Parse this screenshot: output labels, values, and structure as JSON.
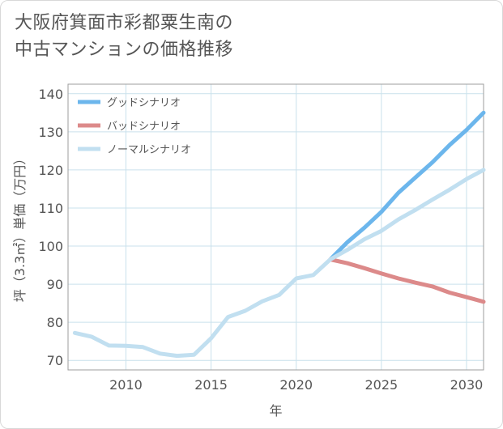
{
  "title_lines": [
    "大阪府箕面市彩都粟生南の",
    "中古マンションの価格推移"
  ],
  "colors": {
    "good": "#6cb6ec",
    "bad": "#dc8a8a",
    "normal": "#c1dff0",
    "grid": "#c9e1ec",
    "plot_border": "#9e9e9e",
    "text": "#555555"
  },
  "chart_data": {
    "type": "line",
    "title": "大阪府箕面市彩都粟生南の中古マンションの価格推移",
    "xlabel": "年",
    "ylabel": "坪（3.3㎡）単価（万円）",
    "xlim": [
      2006.6,
      2031
    ],
    "ylim": [
      67.5,
      142.5
    ],
    "xticks": [
      2010,
      2015,
      2020,
      2025,
      2030
    ],
    "yticks": [
      70,
      80,
      90,
      100,
      110,
      120,
      130,
      140
    ],
    "grid": true,
    "legend_position": "top-left",
    "series": [
      {
        "name": "グッドシナリオ",
        "color": "#6cb6ec",
        "x": [
          2022,
          2023,
          2024,
          2025,
          2026,
          2027,
          2028,
          2029,
          2030,
          2031
        ],
        "y": [
          96.5,
          101.0,
          104.8,
          109.0,
          114.0,
          118.0,
          122.0,
          126.5,
          130.5,
          135.0
        ]
      },
      {
        "name": "バッドシナリオ",
        "color": "#dc8a8a",
        "x": [
          2022,
          2023,
          2024,
          2025,
          2026,
          2027,
          2028,
          2029,
          2030,
          2031
        ],
        "y": [
          96.5,
          95.5,
          94.2,
          92.8,
          91.5,
          90.4,
          89.4,
          87.8,
          86.6,
          85.4
        ]
      },
      {
        "name": "ノーマルシナリオ",
        "color": "#c1dff0",
        "x": [
          2007,
          2008,
          2009,
          2010,
          2011,
          2012,
          2013,
          2014,
          2015,
          2016,
          2017,
          2018,
          2019,
          2020,
          2021,
          2022,
          2023,
          2024,
          2025,
          2026,
          2027,
          2028,
          2029,
          2030,
          2031
        ],
        "y": [
          77.2,
          76.2,
          73.9,
          73.8,
          73.5,
          71.8,
          71.2,
          71.5,
          75.8,
          81.4,
          83.0,
          85.5,
          87.2,
          91.5,
          92.4,
          96.5,
          99.0,
          101.8,
          104.0,
          107.0,
          109.5,
          112.2,
          114.8,
          117.6,
          120.0
        ]
      }
    ]
  }
}
